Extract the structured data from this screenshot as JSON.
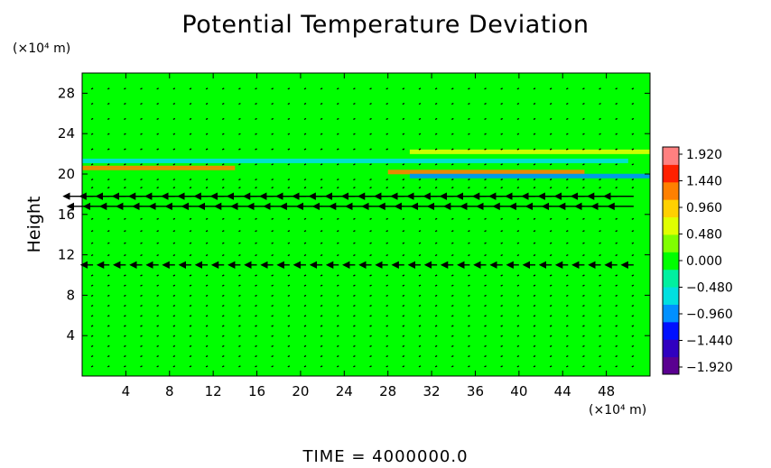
{
  "chart_data": {
    "type": "heatmap",
    "title": "Potential Temperature Deviation",
    "ylabel": "Height",
    "xunit": "(×10⁴ m)",
    "yunit": "(×10⁴ m)",
    "footer": "TIME  =  4000000.0",
    "xlim": [
      0,
      52
    ],
    "ylim": [
      0,
      30
    ],
    "x_ticks": [
      4,
      8,
      12,
      16,
      20,
      24,
      28,
      32,
      36,
      40,
      44,
      48
    ],
    "y_ticks": [
      4,
      8,
      12,
      16,
      20,
      24,
      28
    ],
    "colorbar": {
      "range": [
        -1.92,
        1.92
      ],
      "ticks": [
        "1.920",
        "1.440",
        "0.960",
        "0.480",
        "0.000",
        "−0.480",
        "−0.960",
        "−1.440",
        "−1.920"
      ],
      "colors": [
        "#5a0090",
        "#3000c0",
        "#0010ff",
        "#0090ff",
        "#00e0e0",
        "#00f0a0",
        "#00ff00",
        "#80ff00",
        "#e0ff00",
        "#ffd000",
        "#ff8000",
        "#ff2000",
        "#ff8080"
      ]
    },
    "background_value": 0.0,
    "bands": [
      {
        "y": 20.6,
        "value": 1.3,
        "x_range": [
          0,
          14
        ]
      },
      {
        "y": 20.2,
        "value": 1.2,
        "x_range": [
          28,
          46
        ]
      },
      {
        "y": 21.3,
        "value": -0.7,
        "x_range": [
          0,
          50
        ]
      },
      {
        "y": 19.8,
        "value": -0.9,
        "x_range": [
          30,
          52
        ]
      },
      {
        "y": 22.2,
        "value": 0.5,
        "x_range": [
          30,
          52
        ]
      }
    ],
    "wind_field": {
      "description": "arrow rows",
      "strong_rows": [
        {
          "y": 17.8,
          "u": -3.0
        },
        {
          "y": 16.8,
          "u": -2.6
        },
        {
          "y": 11.0,
          "u": -1.2
        }
      ],
      "weak_rows": [
        28.5,
        27,
        25.5,
        24,
        22.5,
        21,
        19.5,
        18.7,
        15.6,
        14.4,
        13.2,
        12.0,
        10,
        9,
        8,
        7,
        6,
        5,
        4,
        3,
        2,
        1
      ]
    }
  }
}
